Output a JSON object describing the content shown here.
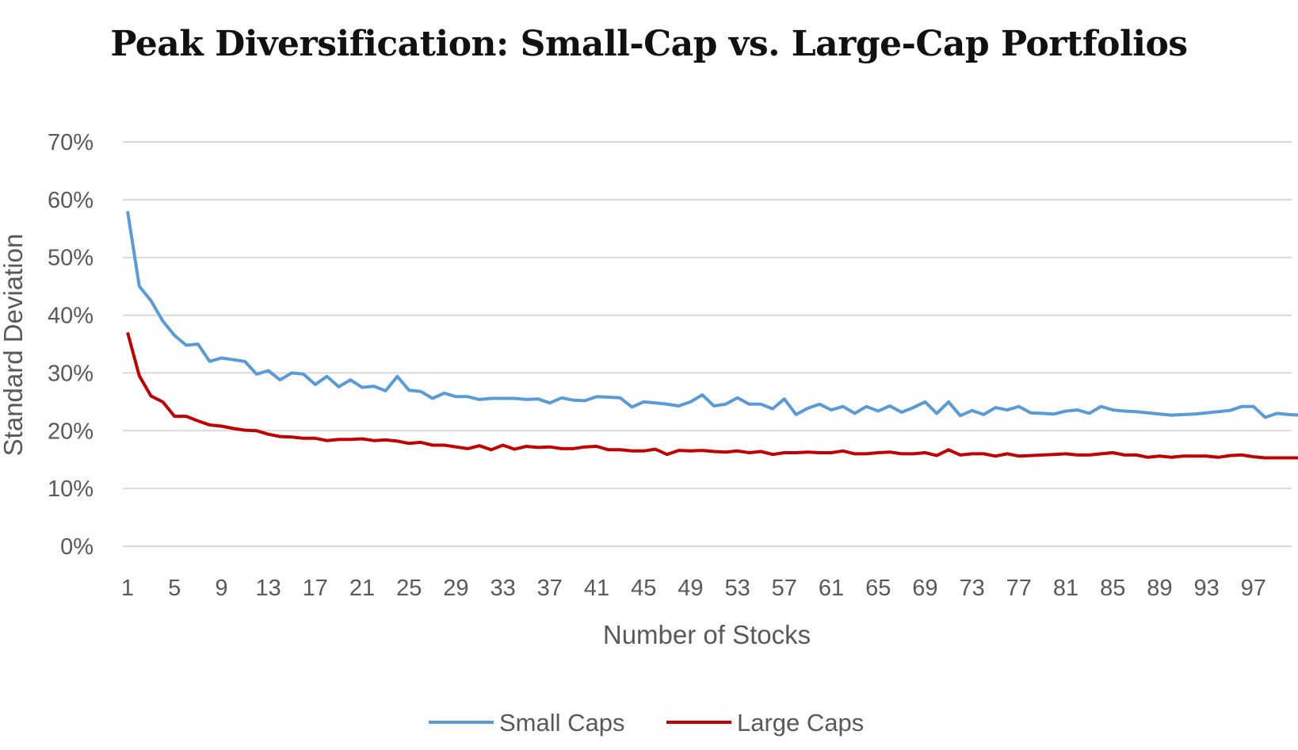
{
  "chart_data": {
    "type": "line",
    "title": "Peak Diversification: Small-Cap vs. Large-Cap Portfolios",
    "xlabel": "Number of Stocks",
    "ylabel": "Standard Deviation",
    "x": [
      1,
      2,
      3,
      4,
      5,
      6,
      7,
      8,
      9,
      10,
      11,
      12,
      13,
      14,
      15,
      16,
      17,
      18,
      19,
      20,
      21,
      22,
      23,
      24,
      25,
      26,
      27,
      28,
      29,
      30,
      31,
      32,
      33,
      34,
      35,
      36,
      37,
      38,
      39,
      40,
      41,
      42,
      43,
      44,
      45,
      46,
      47,
      48,
      49,
      50,
      51,
      52,
      53,
      54,
      55,
      56,
      57,
      58,
      59,
      60,
      61,
      62,
      63,
      64,
      65,
      66,
      67,
      68,
      69,
      70,
      71,
      72,
      73,
      74,
      75,
      76,
      77,
      78,
      79,
      80,
      81,
      82,
      83,
      84,
      85,
      86,
      87,
      88,
      89,
      90,
      91,
      92,
      93,
      94,
      95,
      96,
      97,
      98,
      99,
      100,
      101
    ],
    "x_tick_labels": [
      "1",
      "5",
      "9",
      "13",
      "17",
      "21",
      "25",
      "29",
      "33",
      "37",
      "41",
      "45",
      "49",
      "53",
      "57",
      "61",
      "65",
      "69",
      "73",
      "77",
      "81",
      "85",
      "89",
      "93",
      "97"
    ],
    "y_tick_labels": [
      "0%",
      "10%",
      "20%",
      "30%",
      "40%",
      "50%",
      "60%",
      "70%"
    ],
    "ylim": [
      0,
      70
    ],
    "grid": true,
    "legend_position": "bottom",
    "series": [
      {
        "name": "Small Caps",
        "color": "#5B9BD5",
        "values": [
          58,
          45,
          42.5,
          39,
          36.5,
          34.8,
          35,
          32,
          32.6,
          32.3,
          32,
          29.8,
          30.4,
          28.8,
          30,
          29.8,
          28,
          29.4,
          27.6,
          28.8,
          27.5,
          27.7,
          26.9,
          29.4,
          27,
          26.8,
          25.6,
          26.5,
          25.9,
          25.9,
          25.4,
          25.6,
          25.6,
          25.6,
          25.4,
          25.5,
          24.8,
          25.7,
          25.3,
          25.2,
          25.9,
          25.8,
          25.7,
          24.1,
          25,
          24.8,
          24.6,
          24.3,
          25,
          26.2,
          24.3,
          24.6,
          25.7,
          24.6,
          24.6,
          23.8,
          25.5,
          22.8,
          23.9,
          24.6,
          23.6,
          24.2,
          23,
          24.2,
          23.4,
          24.3,
          23.2,
          24,
          25,
          23,
          25,
          22.6,
          23.5,
          22.8,
          24,
          23.6,
          24.2,
          23.1,
          23,
          22.9,
          23.4,
          23.6,
          23,
          24.2,
          23.6,
          23.4,
          23.3,
          23.1,
          22.9,
          22.7,
          22.8,
          22.9,
          23.1,
          23.3,
          23.5,
          24.2,
          24.2,
          22.3,
          23,
          22.8,
          22.7
        ]
      },
      {
        "name": "Large Caps",
        "color": "#C00000",
        "values": [
          37,
          29.5,
          26,
          25,
          22.5,
          22.5,
          21.7,
          21,
          20.8,
          20.4,
          20.1,
          20,
          19.4,
          19,
          18.9,
          18.7,
          18.7,
          18.3,
          18.5,
          18.5,
          18.6,
          18.3,
          18.4,
          18.2,
          17.8,
          18,
          17.5,
          17.5,
          17.2,
          16.9,
          17.4,
          16.7,
          17.5,
          16.8,
          17.3,
          17.1,
          17.2,
          16.9,
          16.9,
          17.2,
          17.3,
          16.7,
          16.7,
          16.5,
          16.5,
          16.8,
          15.9,
          16.6,
          16.5,
          16.6,
          16.4,
          16.3,
          16.5,
          16.2,
          16.4,
          15.9,
          16.2,
          16.2,
          16.3,
          16.2,
          16.2,
          16.5,
          16,
          16,
          16.2,
          16.3,
          16,
          16,
          16.2,
          15.7,
          16.7,
          15.8,
          16,
          16,
          15.6,
          16,
          15.6,
          15.7,
          15.8,
          15.9,
          16,
          15.8,
          15.8,
          16,
          16.2,
          15.8,
          15.8,
          15.4,
          15.6,
          15.4,
          15.6,
          15.6,
          15.6,
          15.4,
          15.7,
          15.8,
          15.5,
          15.3,
          15.3,
          15.3,
          15.3
        ]
      }
    ]
  }
}
